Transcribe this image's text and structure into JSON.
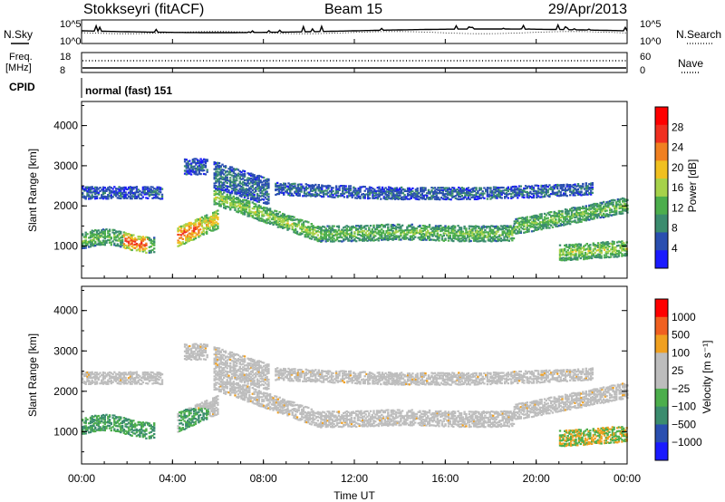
{
  "header": {
    "station": "Stokkseyri (fitACF)",
    "beam": "Beam 15",
    "date": "29/Apr/2013"
  },
  "noise_panel": {
    "left_label": "N.Sky",
    "right_label": "N.Search",
    "left_ticks": [
      "10^5",
      "10^0"
    ],
    "right_ticks": [
      "10^5",
      "10^0"
    ]
  },
  "freq_panel": {
    "left_label_1": "Freq.",
    "left_label_2": "[MHz]",
    "right_label": "Nave",
    "left_ticks": [
      "18",
      "8"
    ],
    "right_ticks": [
      "60",
      "0"
    ]
  },
  "cpid": {
    "label": "CPID",
    "value": "normal (fast) 151"
  },
  "colors": {
    "power": [
      "#1a1aff",
      "#2a4fb0",
      "#3b8c6e",
      "#4cae4c",
      "#a6d24a",
      "#f0c020",
      "#f08020",
      "#f03020",
      "#ff0000"
    ],
    "velocity": [
      "#1a1aff",
      "#2a4fb0",
      "#3b8c6e",
      "#4cae4c",
      "#bdbdbd",
      "#bdbdbd",
      "#f0a020",
      "#f06020",
      "#ff0000"
    ]
  },
  "chart_data": [
    {
      "type": "heatmap",
      "panel": "power",
      "xlabel": "",
      "ylabel": "Slant Range [km]",
      "xlim": [
        0,
        24
      ],
      "ylim": [
        200,
        4600
      ],
      "yticks": [
        "1000",
        "2000",
        "3000",
        "4000"
      ],
      "colorbar": {
        "label": "Power [dB]",
        "ticks": [
          "4",
          "8",
          "12",
          "16",
          "20",
          "24",
          "28"
        ],
        "range": [
          0,
          30
        ]
      }
    },
    {
      "type": "heatmap",
      "panel": "velocity",
      "xlabel": "Time UT",
      "ylabel": "Slant Range [km]",
      "xlim": [
        0,
        24
      ],
      "ylim": [
        200,
        4600
      ],
      "xticks": [
        "00:00",
        "04:00",
        "08:00",
        "12:00",
        "16:00",
        "20:00",
        "00:00"
      ],
      "yticks": [
        "1000",
        "2000",
        "3000",
        "4000"
      ],
      "colorbar": {
        "label": "Velocity [m s⁻¹]",
        "ticks": [
          "1000",
          "500",
          "100",
          "25",
          "−25",
          "−100",
          "−500",
          "−1000"
        ]
      }
    }
  ]
}
